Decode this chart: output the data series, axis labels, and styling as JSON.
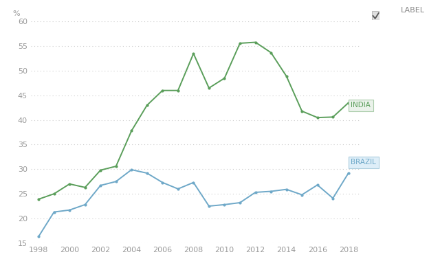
{
  "india_years": [
    1998,
    1999,
    2000,
    2001,
    2002,
    2003,
    2004,
    2005,
    2006,
    2007,
    2008,
    2009,
    2010,
    2011,
    2012,
    2013,
    2014,
    2015,
    2016,
    2017,
    2018
  ],
  "india_values": [
    23.9,
    25.0,
    27.0,
    26.3,
    29.8,
    30.6,
    37.8,
    43.0,
    46.0,
    46.0,
    53.5,
    46.5,
    48.5,
    55.6,
    55.8,
    53.7,
    48.9,
    41.8,
    40.5,
    40.6,
    43.5
  ],
  "brazil_years": [
    1998,
    1999,
    2000,
    2001,
    2002,
    2003,
    2004,
    2005,
    2006,
    2007,
    2008,
    2009,
    2010,
    2011,
    2012,
    2013,
    2014,
    2015,
    2016,
    2017,
    2018
  ],
  "brazil_values": [
    16.3,
    21.3,
    21.7,
    22.8,
    26.7,
    27.5,
    29.9,
    29.2,
    27.3,
    26.0,
    27.3,
    22.5,
    22.8,
    23.2,
    25.3,
    25.5,
    25.9,
    24.8,
    26.8,
    24.1,
    29.2
  ],
  "india_color": "#5a9e5a",
  "brazil_color": "#6ea8c8",
  "india_label": "INDIA",
  "brazil_label": "BRAZIL",
  "legend_label": "LABEL",
  "percent_label": "%",
  "ylim": [
    15,
    60
  ],
  "yticks": [
    15,
    20,
    25,
    30,
    35,
    40,
    45,
    50,
    55,
    60
  ],
  "xlim": [
    1997.5,
    2018.8
  ],
  "xticks": [
    1998,
    2000,
    2002,
    2004,
    2006,
    2008,
    2010,
    2012,
    2014,
    2016,
    2018
  ],
  "bg_color": "#ffffff",
  "grid_color": "#cccccc",
  "markersize": 4,
  "linewidth": 1.4,
  "tick_color": "#999999",
  "tick_fontsize": 8
}
